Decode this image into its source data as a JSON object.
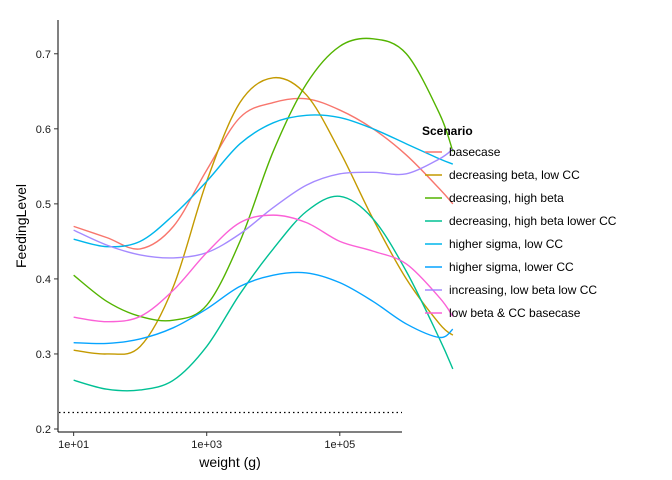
{
  "chart_data": {
    "type": "line",
    "xlabel": "weight (g)",
    "ylabel": "FeedingLevel",
    "x_scale": "log10",
    "xlim": [
      1,
      1000000
    ],
    "ylim": [
      0.2,
      0.75
    ],
    "x_ticks": [
      {
        "value": 10,
        "label": "1e+01"
      },
      {
        "value": 1000,
        "label": "1e+03"
      },
      {
        "value": 100000,
        "label": "1e+05"
      }
    ],
    "y_ticks": [
      {
        "value": 0.2,
        "label": "0.2"
      },
      {
        "value": 0.3,
        "label": "0.3"
      },
      {
        "value": 0.4,
        "label": "0.4"
      },
      {
        "value": 0.5,
        "label": "0.5"
      },
      {
        "value": 0.6,
        "label": "0.6"
      },
      {
        "value": 0.7,
        "label": "0.7"
      }
    ],
    "grid": false,
    "legend_title": "Scenario",
    "legend_position": "right",
    "reference_line": {
      "y": 0.222,
      "style": "dotted",
      "color": "#000000"
    },
    "x": [
      1,
      3.16,
      10,
      31.6,
      100,
      316,
      1000,
      3160,
      10000,
      31600,
      100000,
      316000,
      500000
    ],
    "series": [
      {
        "name": "basecase",
        "color": "#F8766D",
        "values": [
          0.47,
          0.455,
          0.44,
          0.47,
          0.545,
          0.615,
          0.635,
          0.64,
          0.625,
          0.6,
          0.565,
          0.52,
          0.5
        ]
      },
      {
        "name": "decreasing beta, low CC",
        "color": "#C49A00",
        "values": [
          0.305,
          0.3,
          0.31,
          0.39,
          0.53,
          0.635,
          0.668,
          0.645,
          0.57,
          0.48,
          0.4,
          0.34,
          0.325
        ]
      },
      {
        "name": "decreasing, high beta",
        "color": "#53B400",
        "values": [
          0.405,
          0.37,
          0.35,
          0.345,
          0.365,
          0.45,
          0.57,
          0.66,
          0.71,
          0.72,
          0.7,
          0.62,
          0.57
        ]
      },
      {
        "name": "decreasing, high beta lower CC",
        "color": "#00C094",
        "values": [
          0.265,
          0.253,
          0.252,
          0.265,
          0.31,
          0.38,
          0.44,
          0.49,
          0.51,
          0.48,
          0.41,
          0.32,
          0.28
        ]
      },
      {
        "name": "higher sigma, low CC",
        "color": "#00B6EB",
        "values": [
          0.453,
          0.443,
          0.45,
          0.485,
          0.53,
          0.58,
          0.608,
          0.618,
          0.615,
          0.6,
          0.58,
          0.56,
          0.553
        ]
      },
      {
        "name": "higher sigma, lower CC",
        "color": "#06A4FF",
        "values": [
          0.315,
          0.314,
          0.32,
          0.335,
          0.36,
          0.39,
          0.405,
          0.408,
          0.395,
          0.37,
          0.34,
          0.322,
          0.333
        ]
      },
      {
        "name": "increasing, low beta low CC",
        "color": "#A58AFF",
        "values": [
          0.465,
          0.445,
          0.432,
          0.428,
          0.435,
          0.46,
          0.495,
          0.525,
          0.54,
          0.542,
          0.54,
          0.56,
          0.573
        ]
      },
      {
        "name": "low beta & CC basecase",
        "color": "#FB61D7",
        "values": [
          0.349,
          0.343,
          0.35,
          0.385,
          0.435,
          0.475,
          0.485,
          0.475,
          0.45,
          0.437,
          0.42,
          0.375,
          0.35
        ]
      }
    ]
  }
}
